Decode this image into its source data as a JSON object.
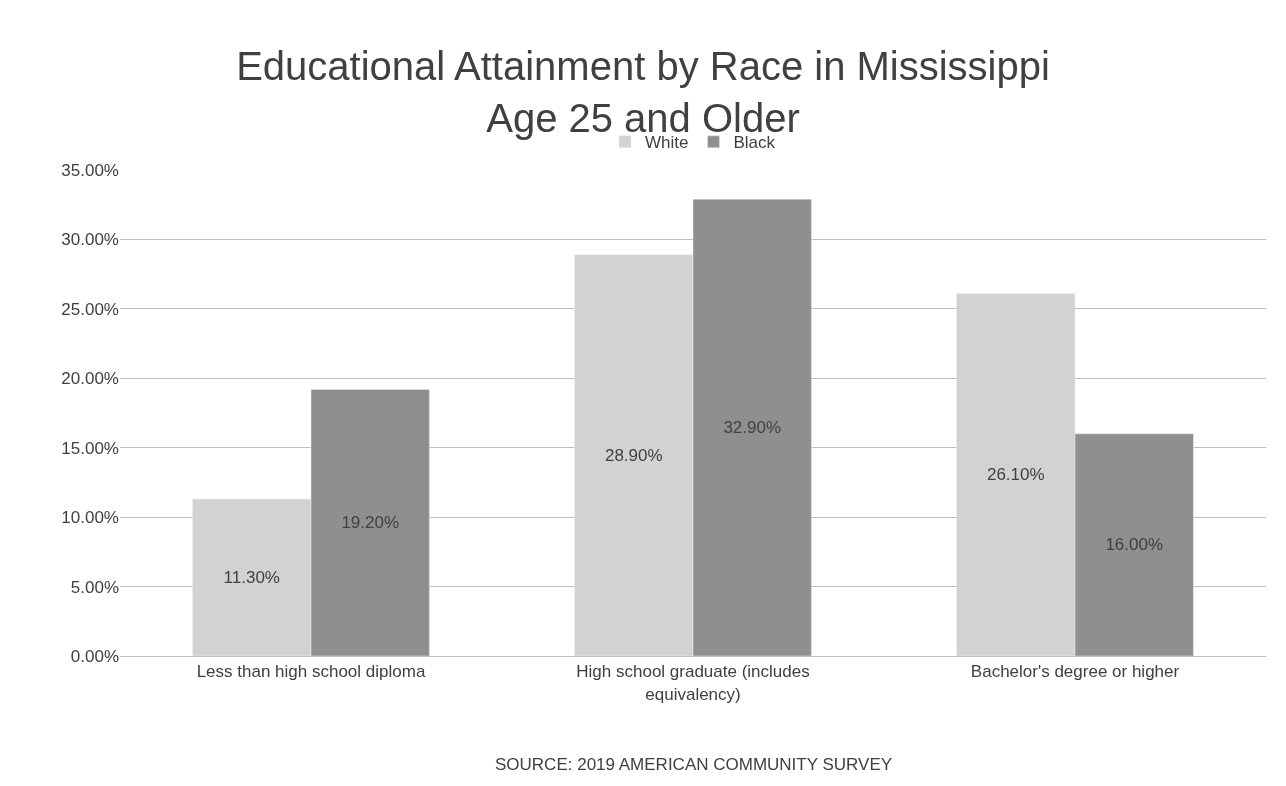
{
  "chart_data": {
    "type": "bar",
    "title": "Educational Attainment by Race in Mississippi\nAge 25 and Older",
    "categories": [
      "Less than high school diploma",
      "High school graduate (includes equivalency)",
      "Bachelor's degree or higher"
    ],
    "series": [
      {
        "name": "White",
        "color": "#d2d2d2",
        "values": [
          11.3,
          28.9,
          26.1
        ],
        "value_labels": [
          "11.30%",
          "28.90%",
          "26.10%"
        ]
      },
      {
        "name": "Black",
        "color": "#8f8f8f",
        "values": [
          19.2,
          32.9,
          16.0
        ],
        "value_labels": [
          "19.20%",
          "32.90%",
          "16.00%"
        ]
      }
    ],
    "ylim": [
      0,
      35
    ],
    "yticks": [
      {
        "value": 0,
        "label": "0.00%"
      },
      {
        "value": 5,
        "label": "5.00%"
      },
      {
        "value": 10,
        "label": "10.00%"
      },
      {
        "value": 15,
        "label": "15.00%"
      },
      {
        "value": 20,
        "label": "20.00%"
      },
      {
        "value": 25,
        "label": "25.00%"
      },
      {
        "value": 30,
        "label": "30.00%"
      },
      {
        "value": 35,
        "label": "35.00%"
      }
    ],
    "grid": "y",
    "legend": "top",
    "annotations": [
      "SOURCE: 2019 AMERICAN COMMUNITY SURVEY"
    ]
  }
}
